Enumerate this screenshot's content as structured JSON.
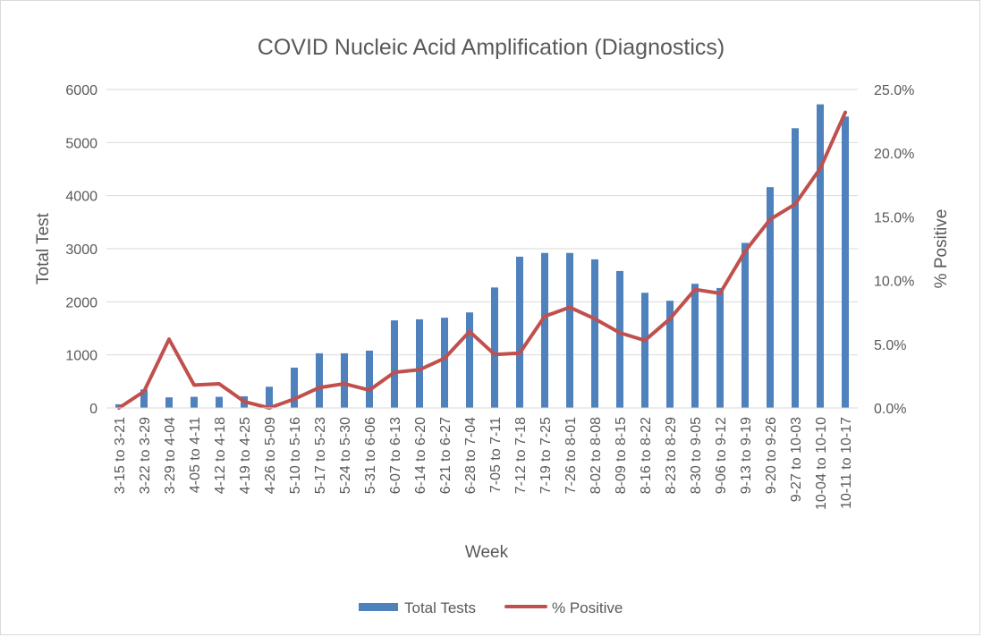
{
  "chart_data": {
    "type": "bar",
    "title": "COVID Nucleic Acid Amplification (Diagnostics)",
    "xlabel": "Week",
    "ylabel": "Total Test",
    "y2label": "% Positive",
    "ylim": [
      0,
      6000
    ],
    "y2lim": [
      0,
      25
    ],
    "yticks": [
      "0",
      "1000",
      "2000",
      "3000",
      "4000",
      "5000",
      "6000"
    ],
    "y2ticks": [
      "0.0%",
      "5.0%",
      "10.0%",
      "15.0%",
      "20.0%",
      "25.0%"
    ],
    "grid": true,
    "legend_position": "bottom",
    "categories": [
      "3-15 to 3-21",
      "3-22 to 3-29",
      "3-29 to 4-04",
      "4-05 to 4-11",
      "4-12 to 4-18",
      "4-19 to 4-25",
      "4-26 to 5-09",
      "5-10 to 5-16",
      "5-17 to 5-23",
      "5-24 to 5-30",
      "5-31 to 6-06",
      "6-07 to 6-13",
      "6-14 to 6-20",
      "6-21 to 6-27",
      "6-28 to 7-04",
      "7-05 to 7-11",
      "7-12 to 7-18",
      "7-19 to 7-25",
      "7-26 to 8-01",
      "8-02 to 8-08",
      "8-09 to 8-15",
      "8-16 to 8-22",
      "8-23 to 8-29",
      "8-30 to 9-05",
      "9-06 to 9-12",
      "9-13 to 9-19",
      "9-20 to 9-26",
      "9-27 to 10-03",
      "10-04 to 10-10",
      "10-11 to 10-17"
    ],
    "series": [
      {
        "name": "Total Tests",
        "type": "bar",
        "axis": "left",
        "color": "#4f81bd",
        "values": [
          70,
          350,
          200,
          210,
          210,
          220,
          400,
          760,
          1030,
          1030,
          1080,
          1650,
          1670,
          1700,
          1800,
          2270,
          2850,
          2920,
          2920,
          2800,
          2580,
          2170,
          2020,
          2340,
          2260,
          3110,
          4160,
          5270,
          5720,
          5490
        ]
      },
      {
        "name": "% Positive",
        "type": "line",
        "axis": "right",
        "color": "#c0504d",
        "values": [
          0.0,
          1.3,
          5.4,
          1.8,
          1.9,
          0.5,
          0.0,
          0.7,
          1.6,
          1.9,
          1.4,
          2.8,
          3.0,
          3.9,
          6.0,
          4.2,
          4.3,
          7.2,
          7.9,
          7.0,
          5.9,
          5.3,
          7.0,
          9.3,
          9.0,
          12.3,
          14.8,
          16.0,
          18.8,
          23.2
        ]
      }
    ]
  }
}
